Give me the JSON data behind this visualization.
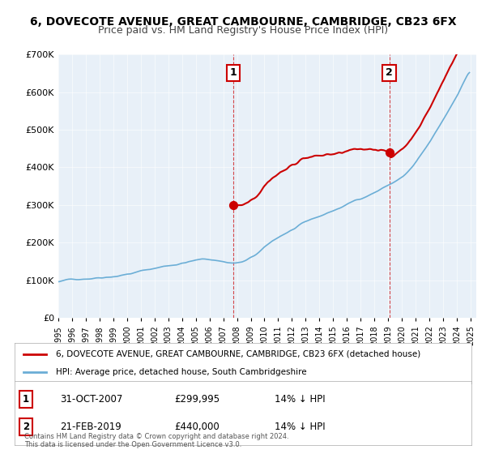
{
  "title": "6, DOVECOTE AVENUE, GREAT CAMBOURNE, CAMBRIDGE, CB23 6FX",
  "subtitle": "Price paid vs. HM Land Registry's House Price Index (HPI)",
  "hpi_label": "HPI: Average price, detached house, South Cambridgeshire",
  "property_label": "6, DOVECOTE AVENUE, GREAT CAMBOURNE, CAMBRIDGE, CB23 6FX (detached house)",
  "hpi_color": "#6baed6",
  "property_color": "#cc0000",
  "dot_color": "#cc0000",
  "background_color": "#e8f0f8",
  "sale1_date": "31-OCT-2007",
  "sale1_price": 299995,
  "sale1_label": "1",
  "sale1_hpi_diff": "14% ↓ HPI",
  "sale2_date": "21-FEB-2019",
  "sale2_price": 440000,
  "sale2_label": "2",
  "sale2_hpi_diff": "14% ↓ HPI",
  "ylim": [
    0,
    700000
  ],
  "yticks": [
    0,
    100000,
    200000,
    300000,
    400000,
    500000,
    600000,
    700000
  ],
  "ytick_labels": [
    "£0",
    "£100K",
    "£200K",
    "£300K",
    "£400K",
    "£500K",
    "£600K",
    "£700K"
  ],
  "footer": "Contains HM Land Registry data © Crown copyright and database right 2024.\nThis data is licensed under the Open Government Licence v3.0."
}
